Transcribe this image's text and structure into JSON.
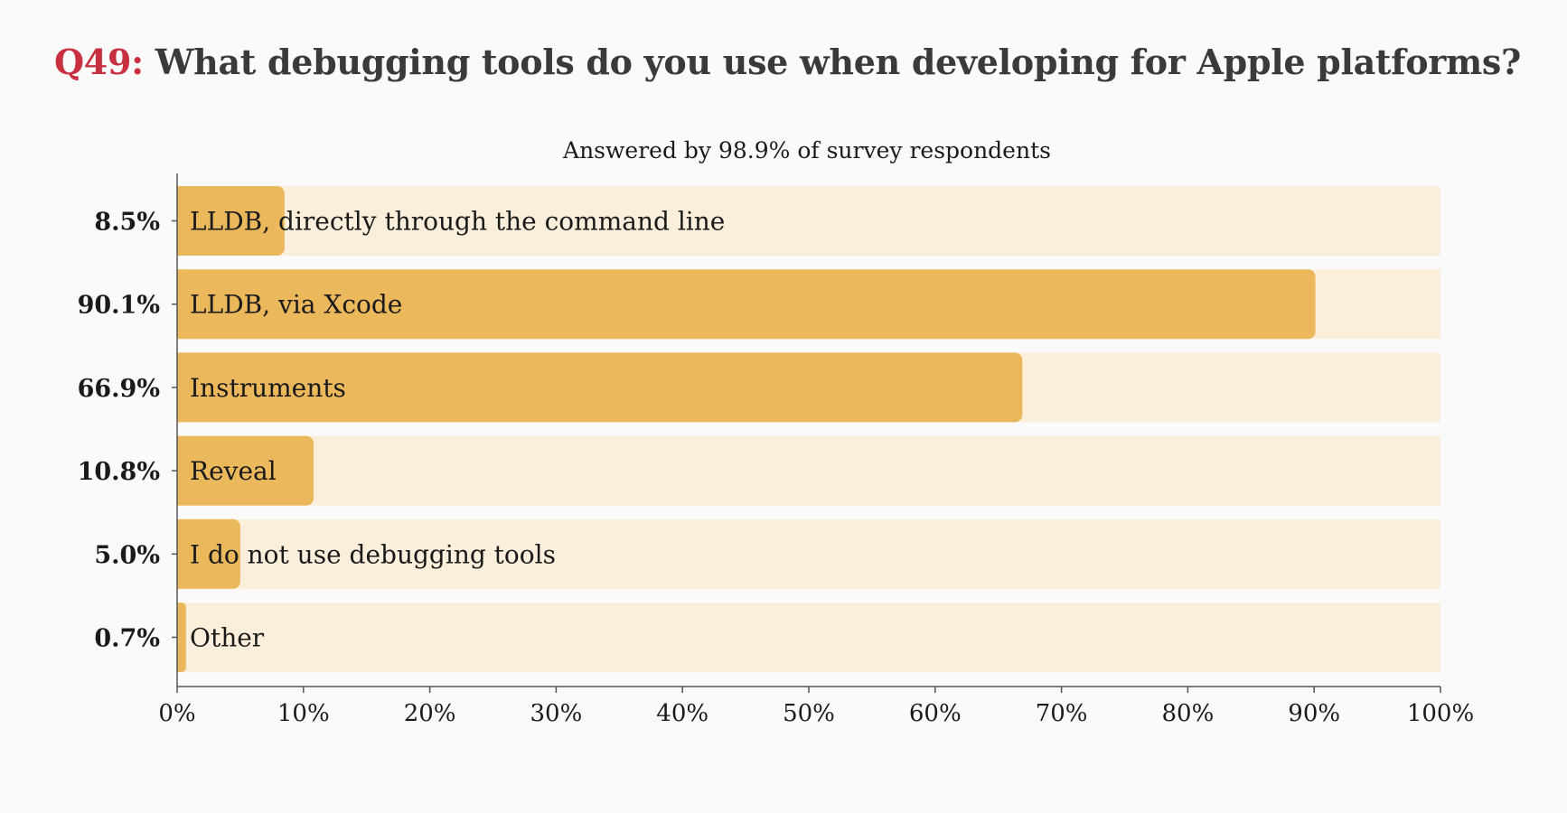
{
  "question": {
    "number": "Q49:",
    "text": "What debugging tools do you use when developing for Apple platforms?"
  },
  "colors": {
    "accent": "#c9303f",
    "bar": "#ebb85c",
    "track": "#fbefdc",
    "title": "#3a3a3a"
  },
  "chart_data": {
    "type": "bar",
    "orientation": "horizontal",
    "subtitle": "Answered by 98.9% of survey respondents",
    "categories": [
      "LLDB, directly through the command line",
      "LLDB, via Xcode",
      "Instruments",
      "Reveal",
      "I do not use debugging tools",
      "Other"
    ],
    "values": [
      8.5,
      90.1,
      66.9,
      10.8,
      5.0,
      0.7
    ],
    "value_labels": [
      "8.5%",
      "90.1%",
      "66.9%",
      "10.8%",
      "5.0%",
      "0.7%"
    ],
    "xlim": [
      0,
      100
    ],
    "x_ticks": [
      0,
      10,
      20,
      30,
      40,
      50,
      60,
      70,
      80,
      90,
      100
    ],
    "x_tick_labels": [
      "0%",
      "10%",
      "20%",
      "30%",
      "40%",
      "50%",
      "60%",
      "70%",
      "80%",
      "90%",
      "100%"
    ],
    "grid": false,
    "legend": "none"
  }
}
